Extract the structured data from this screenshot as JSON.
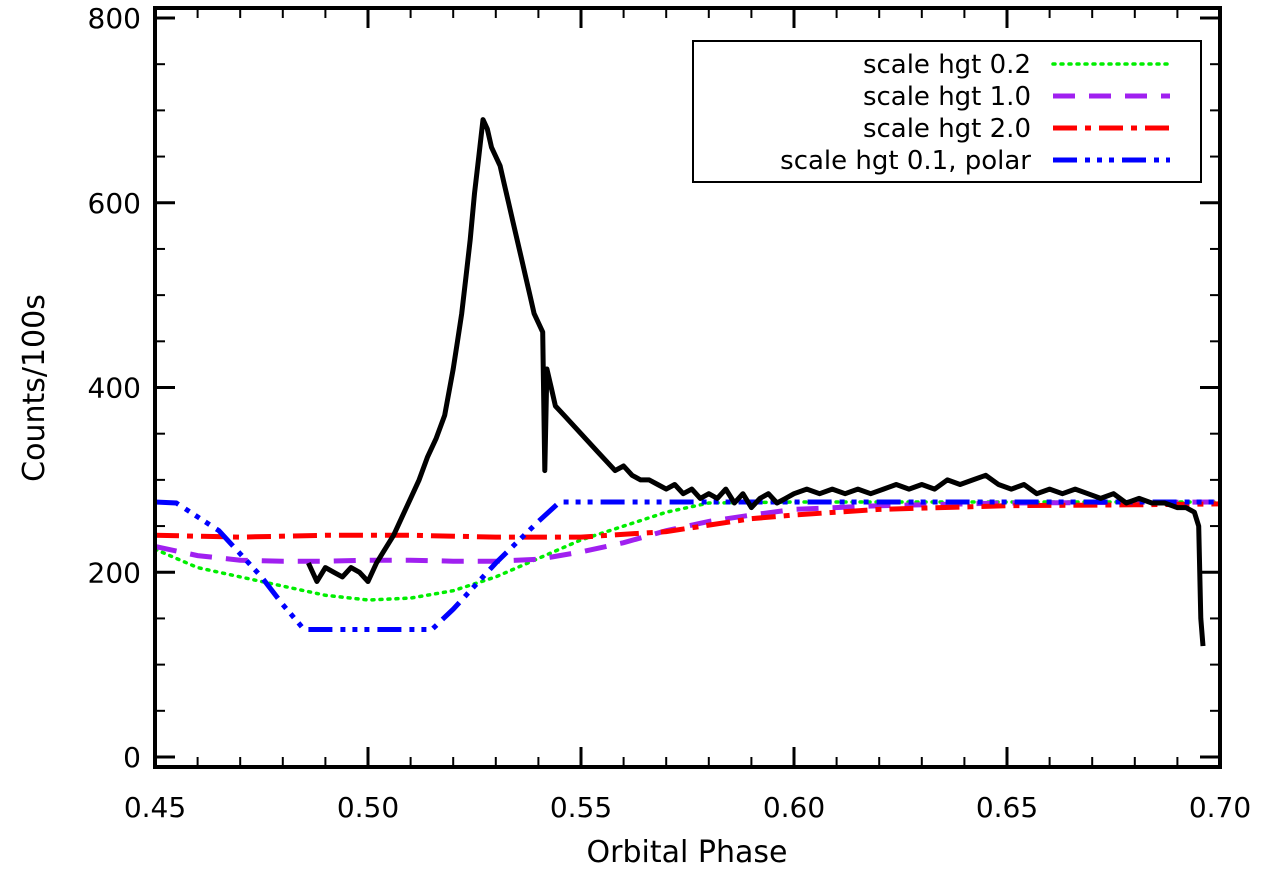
{
  "chart_data": {
    "type": "line",
    "title": "",
    "xlabel": "Orbital Phase",
    "ylabel": "Counts/100s",
    "xlim": [
      0.45,
      0.7
    ],
    "ylim": [
      0,
      800
    ],
    "xticks": [
      0.45,
      0.5,
      0.55,
      0.6,
      0.65,
      0.7
    ],
    "xtick_labels": [
      "0.45",
      "0.50",
      "0.55",
      "0.60",
      "0.65",
      "0.70"
    ],
    "yticks": [
      0,
      200,
      400,
      600,
      800
    ],
    "ytick_labels": [
      "0",
      "200",
      "400",
      "600",
      "800"
    ],
    "grid": false,
    "legend_position": "top-right",
    "observed": {
      "color": "#000000",
      "x": [
        0.486,
        0.488,
        0.49,
        0.492,
        0.494,
        0.496,
        0.498,
        0.5,
        0.502,
        0.504,
        0.506,
        0.508,
        0.51,
        0.512,
        0.514,
        0.516,
        0.518,
        0.52,
        0.521,
        0.522,
        0.523,
        0.524,
        0.525,
        0.526,
        0.527,
        0.528,
        0.529,
        0.53,
        0.531,
        0.532,
        0.533,
        0.534,
        0.535,
        0.536,
        0.537,
        0.538,
        0.539,
        0.54,
        0.541,
        0.5415,
        0.542,
        0.543,
        0.544,
        0.546,
        0.548,
        0.55,
        0.552,
        0.554,
        0.556,
        0.558,
        0.56,
        0.562,
        0.564,
        0.566,
        0.568,
        0.57,
        0.572,
        0.574,
        0.576,
        0.578,
        0.58,
        0.582,
        0.584,
        0.586,
        0.588,
        0.59,
        0.592,
        0.594,
        0.596,
        0.598,
        0.6,
        0.603,
        0.606,
        0.609,
        0.612,
        0.615,
        0.618,
        0.621,
        0.624,
        0.627,
        0.63,
        0.633,
        0.636,
        0.639,
        0.642,
        0.645,
        0.648,
        0.651,
        0.654,
        0.657,
        0.66,
        0.663,
        0.666,
        0.669,
        0.672,
        0.675,
        0.678,
        0.681,
        0.684,
        0.687,
        0.69,
        0.692,
        0.694,
        0.695,
        0.6955,
        0.696
      ],
      "y": [
        210,
        190,
        205,
        200,
        195,
        205,
        200,
        190,
        210,
        225,
        240,
        260,
        280,
        300,
        325,
        345,
        370,
        420,
        450,
        480,
        520,
        560,
        610,
        650,
        690,
        680,
        660,
        650,
        640,
        620,
        600,
        580,
        560,
        540,
        520,
        500,
        480,
        470,
        460,
        310,
        420,
        400,
        380,
        370,
        360,
        350,
        340,
        330,
        320,
        310,
        315,
        305,
        300,
        300,
        295,
        290,
        295,
        285,
        290,
        280,
        285,
        280,
        290,
        275,
        285,
        270,
        280,
        285,
        275,
        280,
        285,
        290,
        285,
        290,
        285,
        290,
        285,
        290,
        295,
        290,
        295,
        290,
        300,
        295,
        300,
        305,
        295,
        290,
        295,
        285,
        290,
        285,
        290,
        285,
        280,
        285,
        275,
        280,
        275,
        275,
        270,
        270,
        265,
        250,
        150,
        120
      ]
    },
    "series": [
      {
        "name": "scale hgt 0.2",
        "color": "#00ee00",
        "style": "dotted",
        "x": [
          0.45,
          0.46,
          0.47,
          0.48,
          0.49,
          0.5,
          0.51,
          0.52,
          0.53,
          0.54,
          0.55,
          0.56,
          0.57,
          0.58,
          0.6,
          0.65,
          0.7
        ],
        "y": [
          225,
          205,
          195,
          185,
          175,
          170,
          172,
          180,
          195,
          215,
          235,
          250,
          265,
          275,
          276,
          276,
          276
        ]
      },
      {
        "name": "scale hgt 1.0",
        "color": "#a020f0",
        "style": "dashed",
        "x": [
          0.45,
          0.46,
          0.47,
          0.48,
          0.49,
          0.5,
          0.51,
          0.52,
          0.53,
          0.54,
          0.55,
          0.56,
          0.57,
          0.58,
          0.59,
          0.6,
          0.62,
          0.65,
          0.7
        ],
        "y": [
          228,
          218,
          213,
          212,
          212,
          213,
          213,
          212,
          212,
          214,
          222,
          232,
          245,
          255,
          262,
          268,
          272,
          275,
          276
        ]
      },
      {
        "name": "scale hgt 2.0",
        "color": "#ff0000",
        "style": "dashdot",
        "x": [
          0.45,
          0.47,
          0.49,
          0.5,
          0.51,
          0.53,
          0.55,
          0.57,
          0.59,
          0.6,
          0.62,
          0.65,
          0.68,
          0.7
        ],
        "y": [
          240,
          238,
          240,
          240,
          240,
          238,
          238,
          244,
          258,
          262,
          268,
          272,
          273,
          274
        ]
      },
      {
        "name": "scale hgt 0.1, polar",
        "color": "#0000ff",
        "style": "dashdotdotdot",
        "x": [
          0.45,
          0.455,
          0.465,
          0.475,
          0.48,
          0.485,
          0.49,
          0.5,
          0.51,
          0.515,
          0.52,
          0.53,
          0.54,
          0.545,
          0.55,
          0.6,
          0.65,
          0.7
        ],
        "y": [
          276,
          275,
          245,
          195,
          165,
          138,
          138,
          138,
          138,
          138,
          160,
          210,
          255,
          276,
          276,
          276,
          276,
          276
        ]
      }
    ]
  }
}
